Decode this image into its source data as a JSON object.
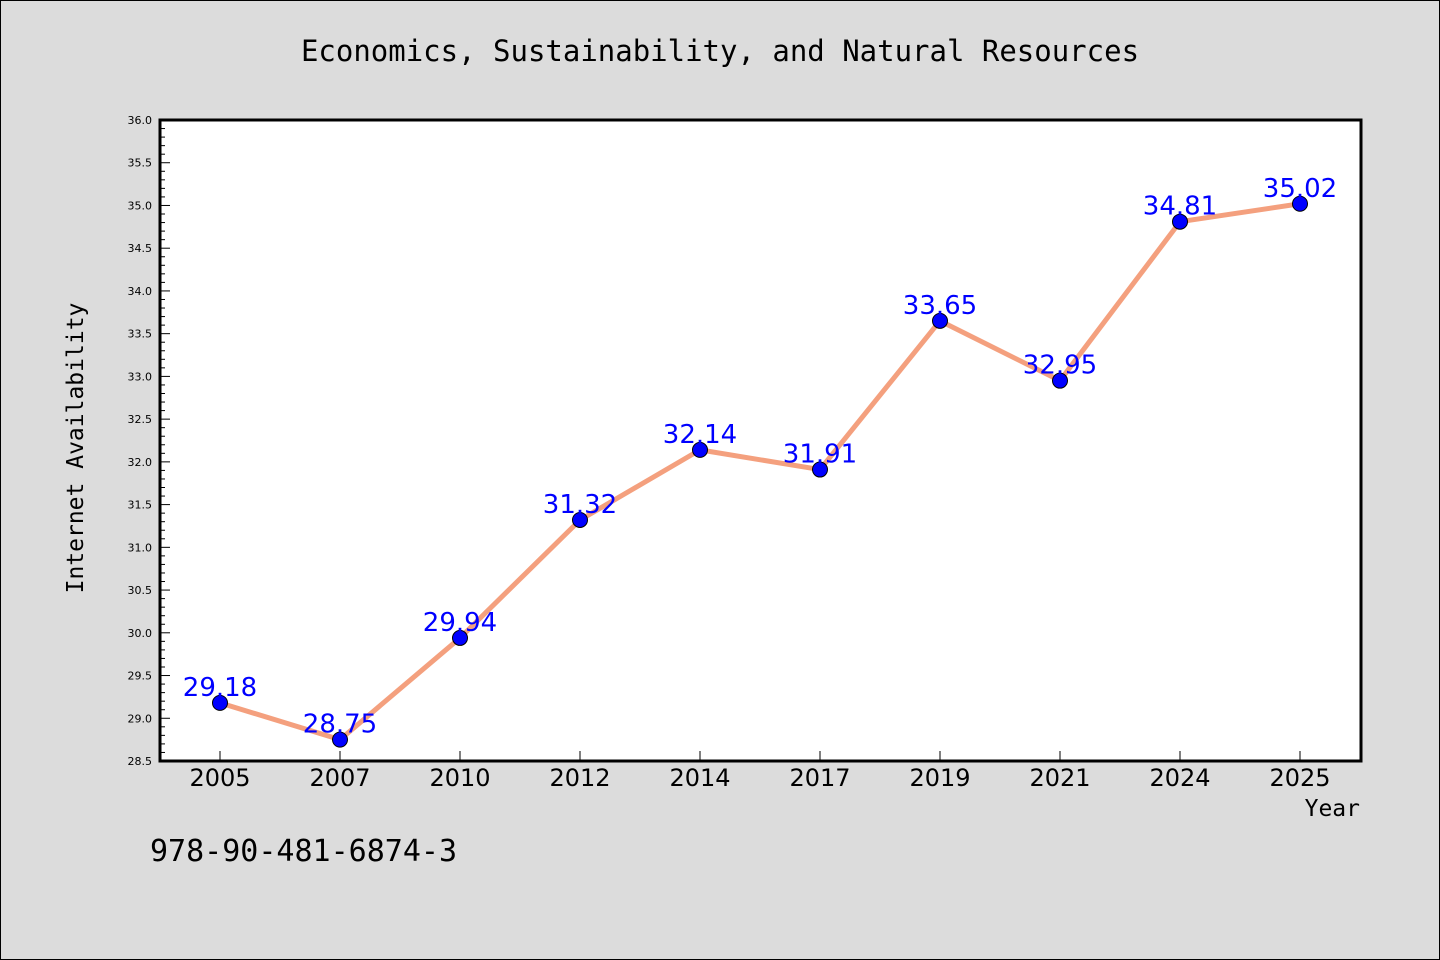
{
  "chart_data": {
    "type": "line",
    "title": "Economics, Sustainability, and Natural Resources",
    "xlabel": "Year",
    "ylabel": "Internet Availability",
    "categories": [
      "2005",
      "2007",
      "2010",
      "2012",
      "2014",
      "2017",
      "2019",
      "2021",
      "2024",
      "2025"
    ],
    "series": [
      {
        "values": [
          29.18,
          28.75,
          29.94,
          31.32,
          32.14,
          31.91,
          33.65,
          32.95,
          34.81,
          35.02
        ],
        "line_color": "#f4a07e",
        "marker_color": "#0000ff"
      }
    ],
    "data_labels": [
      "29.18",
      "28.75",
      "29.94",
      "31.32",
      "32.14",
      "31.91",
      "33.65",
      "32.95",
      "34.81",
      "35.02"
    ],
    "ylim": [
      28.5,
      36.0
    ],
    "yticks": [
      "28.5",
      "29.0",
      "29.5",
      "30.0",
      "30.5",
      "31.0",
      "31.5",
      "32.0",
      "32.5",
      "33.0",
      "33.5",
      "34.0",
      "34.5",
      "35.0",
      "35.5",
      "36.0"
    ],
    "grid": false,
    "legend": "none"
  },
  "footer": {
    "isbn": "978-90-481-6874-3"
  }
}
